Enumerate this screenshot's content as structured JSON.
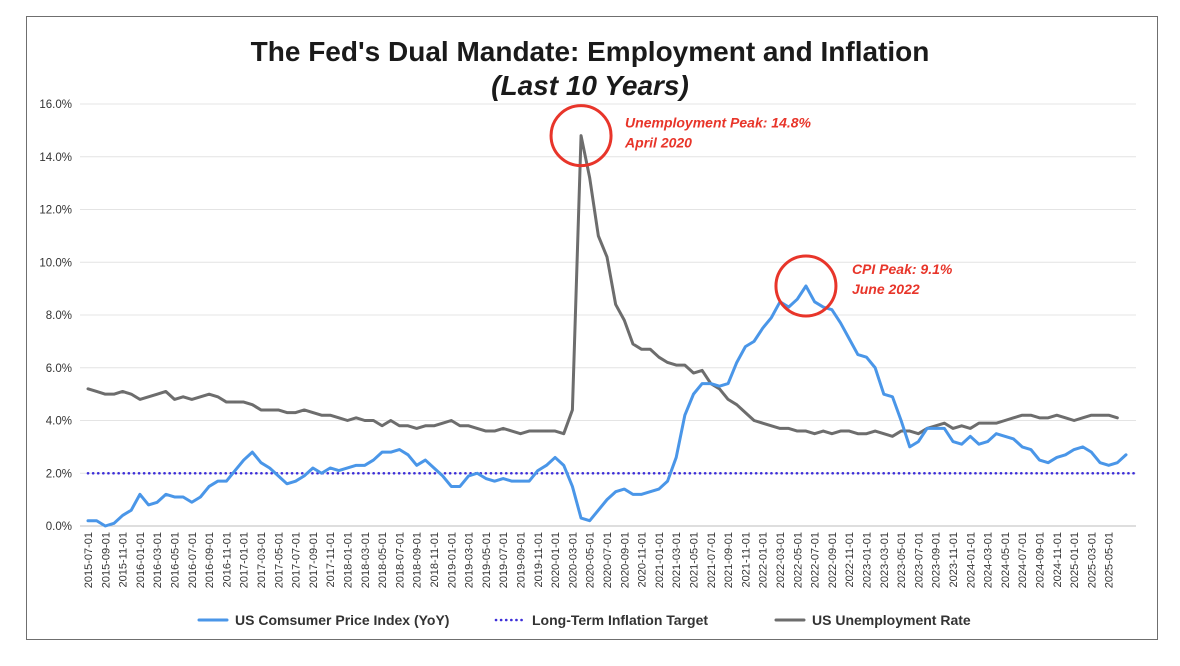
{
  "chart_data": {
    "type": "line",
    "title": "The Fed's Dual Mandate: Employment and Inflation",
    "subtitle": "(Last 10 Years)",
    "xlabel": "",
    "ylabel": "",
    "ylim": [
      0,
      16
    ],
    "y_ticks": [
      "0.0%",
      "2.0%",
      "4.0%",
      "6.0%",
      "8.0%",
      "10.0%",
      "12.0%",
      "14.0%",
      "16.0%"
    ],
    "grid": true,
    "legend_position": "bottom",
    "x_ticks": [
      "2015-07-01",
      "2015-09-01",
      "2015-11-01",
      "2016-01-01",
      "2016-03-01",
      "2016-05-01",
      "2016-07-01",
      "2016-09-01",
      "2016-11-01",
      "2017-01-01",
      "2017-03-01",
      "2017-05-01",
      "2017-07-01",
      "2017-09-01",
      "2017-11-01",
      "2018-01-01",
      "2018-03-01",
      "2018-05-01",
      "2018-07-01",
      "2018-09-01",
      "2018-11-01",
      "2019-01-01",
      "2019-03-01",
      "2019-05-01",
      "2019-07-01",
      "2019-09-01",
      "2019-11-01",
      "2020-01-01",
      "2020-03-01",
      "2020-05-01",
      "2020-07-01",
      "2020-09-01",
      "2020-11-01",
      "2021-01-01",
      "2021-03-01",
      "2021-05-01",
      "2021-07-01",
      "2021-09-01",
      "2021-11-01",
      "2022-01-01",
      "2022-03-01",
      "2022-05-01",
      "2022-07-01",
      "2022-09-01",
      "2022-11-01",
      "2023-01-01",
      "2023-03-01",
      "2023-05-01",
      "2023-07-01",
      "2023-09-01",
      "2023-11-01",
      "2024-01-01",
      "2024-03-01",
      "2024-05-01",
      "2024-07-01",
      "2024-09-01",
      "2024-11-01",
      "2025-01-01",
      "2025-03-01",
      "2025-05-01"
    ],
    "series": [
      {
        "name": "US Comsumer Price Index (YoY)",
        "color": "#4a96e8",
        "style": "solid",
        "values": [
          0.2,
          0.2,
          0.0,
          0.1,
          0.4,
          0.6,
          1.2,
          0.8,
          0.9,
          1.2,
          1.1,
          1.1,
          0.9,
          1.1,
          1.5,
          1.7,
          1.7,
          2.1,
          2.5,
          2.8,
          2.4,
          2.2,
          1.9,
          1.6,
          1.7,
          1.9,
          2.2,
          2.0,
          2.2,
          2.1,
          2.2,
          2.3,
          2.3,
          2.5,
          2.8,
          2.8,
          2.9,
          2.7,
          2.3,
          2.5,
          2.2,
          1.9,
          1.5,
          1.5,
          1.9,
          2.0,
          1.8,
          1.7,
          1.8,
          1.7,
          1.7,
          1.7,
          2.1,
          2.3,
          2.6,
          2.3,
          1.5,
          0.3,
          0.2,
          0.6,
          1.0,
          1.3,
          1.4,
          1.2,
          1.2,
          1.3,
          1.4,
          1.7,
          2.6,
          4.2,
          5.0,
          5.4,
          5.4,
          5.3,
          5.4,
          6.2,
          6.8,
          7.0,
          7.5,
          7.9,
          8.5,
          8.3,
          8.6,
          9.1,
          8.5,
          8.3,
          8.2,
          7.7,
          7.1,
          6.5,
          6.4,
          6.0,
          5.0,
          4.9,
          4.0,
          3.0,
          3.2,
          3.7,
          3.7,
          3.7,
          3.2,
          3.1,
          3.4,
          3.1,
          3.2,
          3.5,
          3.4,
          3.3,
          3.0,
          2.9,
          2.5,
          2.4,
          2.6,
          2.7,
          2.9,
          3.0,
          2.8,
          2.4,
          2.3,
          2.4,
          2.7
        ],
        "annotation": {
          "index": 83,
          "text_line1": "CPI Peak: 9.1%",
          "text_line2": "June 2022"
        }
      },
      {
        "name": "Long-Term Inflation Target",
        "color": "#3d2fd8",
        "style": "dotted",
        "values": [
          2.0
        ]
      },
      {
        "name": "US Unemployment Rate",
        "color": "#6d6d6d",
        "style": "solid",
        "values": [
          5.2,
          5.1,
          5.0,
          5.0,
          5.1,
          5.0,
          4.8,
          4.9,
          5.0,
          5.1,
          4.8,
          4.9,
          4.8,
          4.9,
          5.0,
          4.9,
          4.7,
          4.7,
          4.7,
          4.6,
          4.4,
          4.4,
          4.4,
          4.3,
          4.3,
          4.4,
          4.3,
          4.2,
          4.2,
          4.1,
          4.0,
          4.1,
          4.0,
          4.0,
          3.8,
          4.0,
          3.8,
          3.8,
          3.7,
          3.8,
          3.8,
          3.9,
          4.0,
          3.8,
          3.8,
          3.7,
          3.6,
          3.6,
          3.7,
          3.6,
          3.5,
          3.6,
          3.6,
          3.6,
          3.6,
          3.5,
          4.4,
          14.8,
          13.2,
          11.0,
          10.2,
          8.4,
          7.8,
          6.9,
          6.7,
          6.7,
          6.4,
          6.2,
          6.1,
          6.1,
          5.8,
          5.9,
          5.4,
          5.2,
          4.8,
          4.6,
          4.3,
          4.0,
          3.9,
          3.8,
          3.7,
          3.7,
          3.6,
          3.6,
          3.5,
          3.6,
          3.5,
          3.6,
          3.6,
          3.5,
          3.5,
          3.6,
          3.5,
          3.4,
          3.6,
          3.6,
          3.5,
          3.7,
          3.8,
          3.9,
          3.7,
          3.8,
          3.7,
          3.9,
          3.9,
          3.9,
          4.0,
          4.1,
          4.2,
          4.2,
          4.1,
          4.1,
          4.2,
          4.1,
          4.0,
          4.1,
          4.2,
          4.2,
          4.2,
          4.1
        ],
        "annotation": {
          "index": 57,
          "text_line1": "Unemployment Peak: 14.8%",
          "text_line2": "April 2020"
        }
      }
    ]
  }
}
